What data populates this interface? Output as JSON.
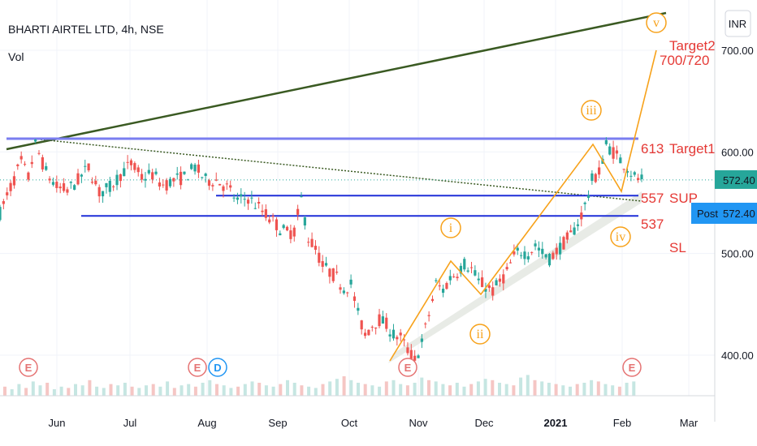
{
  "header": {
    "title": "BHARTI AIRTEL LTD, 4h, NSE",
    "volume_label": "Vol"
  },
  "currency_badge": "INR",
  "price_tag": {
    "value": "572.40",
    "post_label": "Post",
    "post_value": "572.40"
  },
  "colors": {
    "up_candle": "#26a69a",
    "down_candle": "#ef5350",
    "level_line": "#1f2fd8",
    "trend_line": "#3a5a22",
    "wave": "#f7a21b",
    "annotation": "#e53935",
    "price_tag_bg": "#26a69a",
    "post_tag_bg": "#2196f3"
  },
  "chart_data": {
    "type": "candlestick",
    "ylim": [
      378,
      745
    ],
    "y_ticks": [
      "700.00",
      "600.00",
      "500.00",
      "400.00"
    ],
    "x_labels": [
      "Jun",
      "Jul",
      "Aug",
      "Sep",
      "Oct",
      "Nov",
      "Dec",
      "2021",
      "Feb",
      "Mar"
    ],
    "price_path": [
      [
        0,
        540
      ],
      [
        3,
        565
      ],
      [
        6,
        590
      ],
      [
        8,
        575
      ],
      [
        10,
        607
      ],
      [
        13,
        580
      ],
      [
        16,
        565
      ],
      [
        19,
        562
      ],
      [
        22,
        572
      ],
      [
        25,
        585
      ],
      [
        28,
        560
      ],
      [
        31,
        565
      ],
      [
        34,
        578
      ],
      [
        37,
        588
      ],
      [
        40,
        575
      ],
      [
        43,
        578
      ],
      [
        46,
        567
      ],
      [
        49,
        572
      ],
      [
        52,
        575
      ],
      [
        55,
        585
      ],
      [
        58,
        572
      ],
      [
        61,
        572
      ],
      [
        64,
        565
      ],
      [
        67,
        552
      ],
      [
        70,
        555
      ],
      [
        73,
        545
      ],
      [
        76,
        535
      ],
      [
        79,
        525
      ],
      [
        81,
        520
      ],
      [
        83,
        522
      ],
      [
        85,
        553
      ],
      [
        87,
        515
      ],
      [
        89,
        505
      ],
      [
        91,
        488
      ],
      [
        93,
        482
      ],
      [
        95,
        476
      ],
      [
        97,
        466
      ],
      [
        99,
        470
      ],
      [
        101,
        440
      ],
      [
        103,
        420
      ],
      [
        105,
        430
      ],
      [
        107,
        435
      ],
      [
        109,
        430
      ],
      [
        111,
        420
      ],
      [
        113,
        417
      ],
      [
        115,
        405
      ],
      [
        117,
        395
      ],
      [
        119,
        412
      ],
      [
        121,
        440
      ],
      [
        123,
        470
      ],
      [
        125,
        464
      ],
      [
        127,
        476
      ],
      [
        129,
        482
      ],
      [
        131,
        490
      ],
      [
        133,
        485
      ],
      [
        135,
        472
      ],
      [
        137,
        468
      ],
      [
        139,
        463
      ],
      [
        141,
        472
      ],
      [
        143,
        482
      ],
      [
        145,
        497
      ],
      [
        147,
        502
      ],
      [
        149,
        500
      ],
      [
        151,
        508
      ],
      [
        153,
        500
      ],
      [
        155,
        495
      ],
      [
        157,
        502
      ],
      [
        159,
        510
      ],
      [
        161,
        518
      ],
      [
        163,
        530
      ],
      [
        165,
        547
      ],
      [
        167,
        572
      ],
      [
        169,
        580
      ],
      [
        171,
        607
      ],
      [
        173,
        600
      ],
      [
        175,
        592
      ],
      [
        177,
        585
      ],
      [
        179,
        575
      ],
      [
        181,
        572.4
      ]
    ],
    "levels": [
      {
        "value": 613,
        "label": "613",
        "note": "Target1"
      },
      {
        "value": 557,
        "label": "557",
        "note": "SUP"
      },
      {
        "value": 537,
        "label": "537",
        "note": ""
      }
    ],
    "target2": {
      "label": "Target2",
      "value_label": "700/720"
    },
    "stop_loss_label": "SL",
    "waves": [
      "i",
      "ii",
      "iii",
      "iv",
      "v"
    ],
    "events": [
      "E",
      "E",
      "D",
      "E",
      "E"
    ],
    "volume": [
      7,
      5,
      9,
      6,
      11,
      8,
      10,
      5,
      7,
      6,
      9,
      8,
      12,
      7,
      6,
      9,
      8,
      10,
      7,
      6,
      8,
      9,
      7,
      11,
      6,
      8,
      9,
      7,
      10,
      12,
      9,
      8,
      6,
      7,
      9,
      11,
      10,
      8,
      7,
      9,
      12,
      10,
      8,
      7,
      6,
      9,
      11,
      13,
      15,
      12,
      10,
      9,
      8,
      7,
      11,
      12,
      9,
      8,
      10,
      14,
      12,
      11,
      9,
      8,
      10,
      7,
      9,
      11,
      13,
      12,
      10,
      9,
      8,
      14,
      16,
      12,
      11,
      10,
      9,
      8,
      7,
      9,
      10,
      12,
      11,
      9,
      8,
      7,
      10,
      11
    ]
  }
}
